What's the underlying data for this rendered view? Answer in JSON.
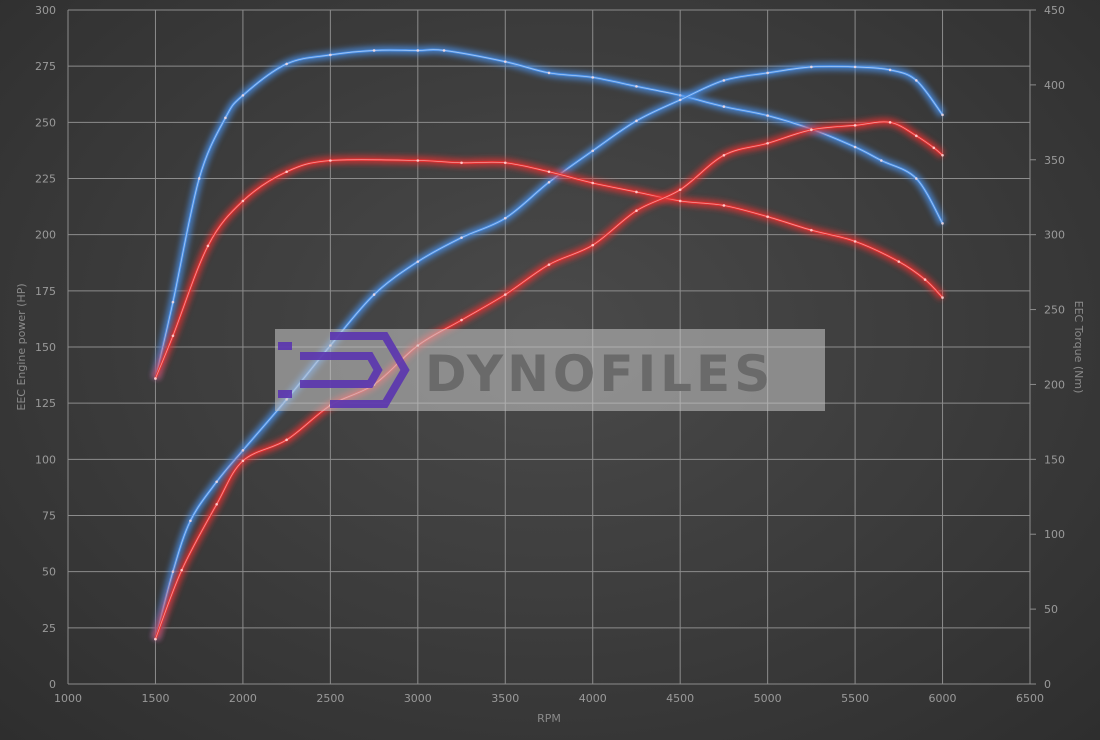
{
  "chart_data": {
    "type": "line",
    "xlabel": "RPM",
    "ylabel_left": "EEC Engine power (HP)",
    "ylabel_right": "EEC Torque (Nm)",
    "xlim": [
      1000,
      6500
    ],
    "ylim_left": [
      0,
      300
    ],
    "ylim_right": [
      0,
      450
    ],
    "x_ticks": [
      1000,
      1500,
      2000,
      2500,
      3000,
      3500,
      4000,
      4500,
      5000,
      5500,
      6000,
      6500
    ],
    "y_ticks_left": [
      0,
      25,
      50,
      75,
      100,
      125,
      150,
      175,
      200,
      225,
      250,
      275,
      300
    ],
    "y_ticks_right": [
      0,
      50,
      100,
      150,
      200,
      250,
      300,
      350,
      400,
      450
    ],
    "grid": true,
    "legend": "none",
    "series": [
      {
        "axis": "left",
        "color": "#4a90e8",
        "x": [
          1500,
          1600,
          1750,
          1900,
          2000,
          2250,
          2500,
          2750,
          3000,
          3150,
          3500,
          3750,
          4000,
          4250,
          4500,
          4750,
          5000,
          5250,
          5500,
          5650,
          5850,
          6000
        ],
        "values": [
          136,
          170,
          225,
          252,
          262,
          276,
          280,
          282,
          282,
          282,
          277,
          272,
          270,
          266,
          262,
          257,
          253,
          247,
          239,
          233,
          225,
          205
        ]
      },
      {
        "axis": "right",
        "color": "#4a90e8",
        "x": [
          1500,
          1600,
          1700,
          1850,
          2000,
          2250,
          2500,
          2750,
          3000,
          3250,
          3500,
          3750,
          4000,
          4250,
          4500,
          4750,
          5000,
          5250,
          5500,
          5700,
          5850,
          6000
        ],
        "values": [
          30,
          75,
          109,
          135,
          156,
          190,
          226,
          260,
          282,
          298,
          311,
          335,
          356,
          376,
          390,
          403,
          408,
          412,
          412,
          410,
          403,
          380
        ]
      },
      {
        "axis": "left",
        "color": "#e83030",
        "x": [
          1500,
          1600,
          1800,
          2000,
          2250,
          2500,
          3000,
          3250,
          3500,
          3750,
          4000,
          4250,
          4500,
          4750,
          5000,
          5250,
          5500,
          5750,
          5900,
          6000
        ],
        "values": [
          136,
          155,
          195,
          215,
          228,
          233,
          233,
          232,
          232,
          228,
          223,
          219,
          215,
          213,
          208,
          202,
          197,
          188,
          180,
          172
        ]
      },
      {
        "axis": "right",
        "color": "#e83030",
        "x": [
          1500,
          1650,
          1850,
          2000,
          2250,
          2500,
          2750,
          3000,
          3250,
          3500,
          3750,
          4000,
          4250,
          4500,
          4750,
          5000,
          5250,
          5500,
          5700,
          5850,
          5950,
          6000
        ],
        "values": [
          30,
          76,
          120,
          149,
          163,
          186,
          200,
          226,
          243,
          260,
          280,
          293,
          316,
          330,
          353,
          361,
          370,
          373,
          375,
          366,
          358,
          353
        ]
      }
    ]
  },
  "watermark": {
    "text": "DYNOFILES",
    "logo_color": "#5b35b0"
  }
}
